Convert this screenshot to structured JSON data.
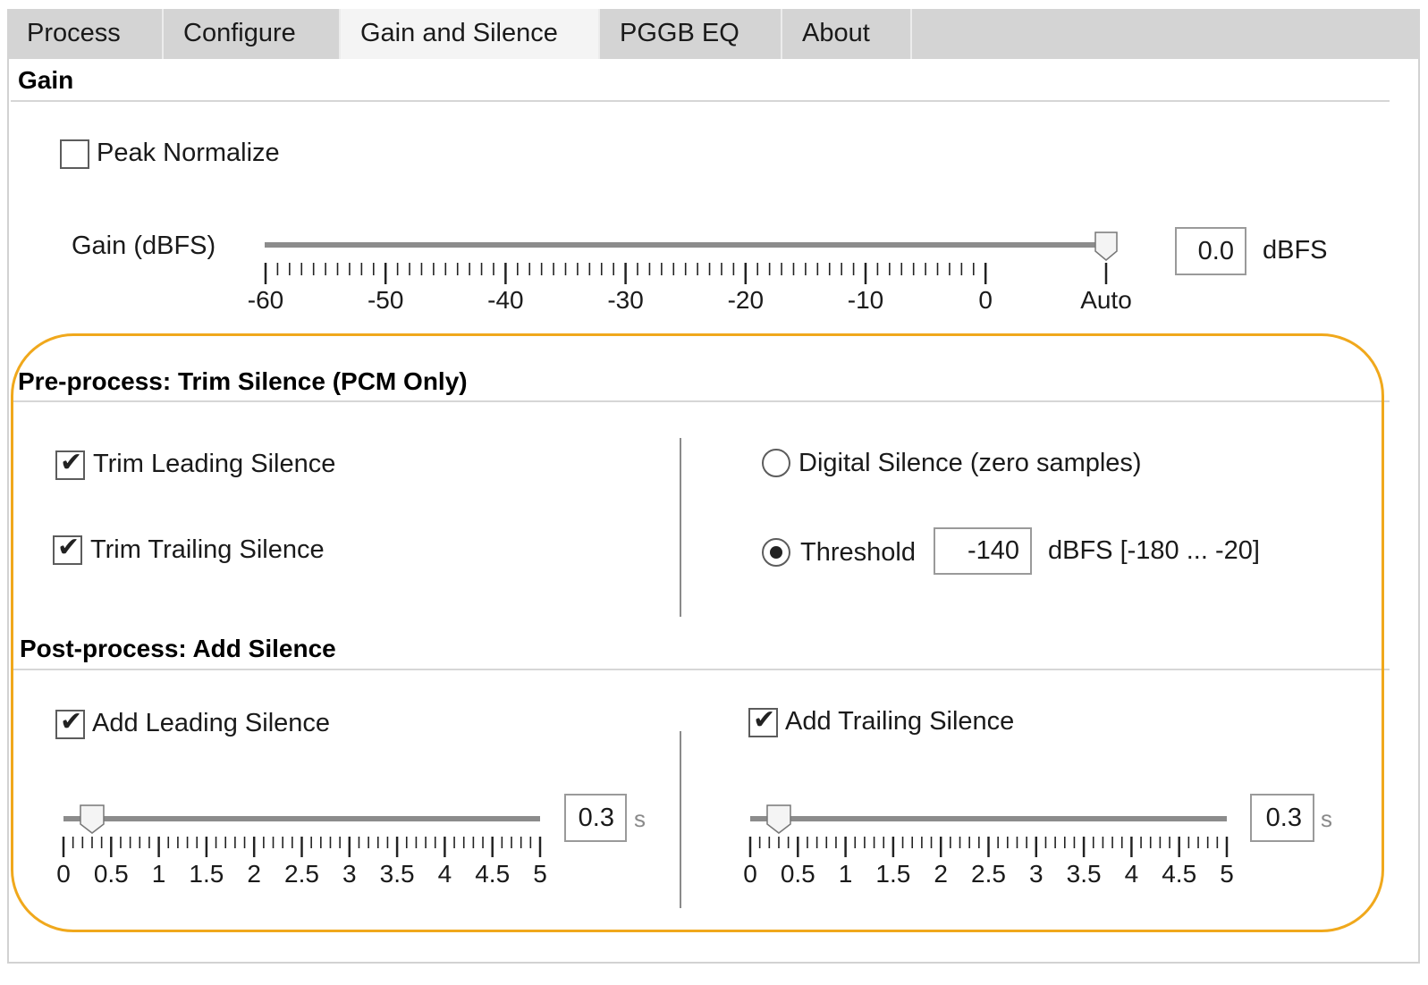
{
  "tabs": [
    {
      "label": "Process",
      "active": false
    },
    {
      "label": "Configure",
      "active": false
    },
    {
      "label": "Gain and Silence",
      "active": true
    },
    {
      "label": "PGGB EQ",
      "active": false
    },
    {
      "label": "About",
      "active": false
    }
  ],
  "gain": {
    "title": "Gain",
    "peak_normalize": {
      "label": "Peak Normalize",
      "checked": false
    },
    "slider_label": "Gain (dBFS)",
    "tick_labels": [
      "-60",
      "-50",
      "-40",
      "-30",
      "-20",
      "-10",
      "0",
      "Auto"
    ],
    "slider_position": "Auto",
    "value": "0.0",
    "unit": "dBFS"
  },
  "trim": {
    "title": "Pre-process: Trim Silence (PCM Only)",
    "leading": {
      "label": "Trim Leading Silence",
      "checked": true
    },
    "trailing": {
      "label": "Trim Trailing Silence",
      "checked": true
    },
    "digital": {
      "label": "Digital Silence (zero samples)",
      "selected": false
    },
    "threshold": {
      "label": "Threshold",
      "selected": true,
      "value": "-140",
      "range": "dBFS [-180 ... -20]"
    }
  },
  "add": {
    "title": "Post-process: Add Silence",
    "leading": {
      "label": "Add Leading Silence",
      "checked": true,
      "value": "0.3",
      "unit": "s",
      "level_fraction": 0.06
    },
    "trailing": {
      "label": "Add Trailing Silence",
      "checked": true,
      "value": "0.3",
      "unit": "s",
      "level_fraction": 0.06
    },
    "tick_labels": [
      "0",
      "0.5",
      "1",
      "1.5",
      "2",
      "2.5",
      "3",
      "3.5",
      "4",
      "4.5",
      "5"
    ]
  },
  "colors": {
    "highlight": "#f0a81c",
    "active_tab": "#f4f4f4",
    "tab_bg": "#d4d4d4"
  },
  "icons": {
    "checkbox_checked": "check-mark",
    "radio_selected": "radio-dot"
  }
}
